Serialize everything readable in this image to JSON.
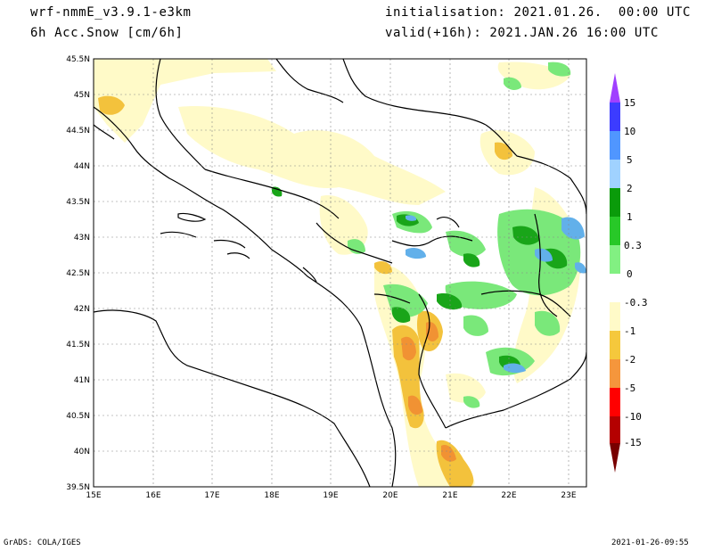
{
  "header": {
    "model": "wrf-nmmE_v3.9.1-e3km",
    "field": "6h Acc.Snow [cm/6h]",
    "init": "initialisation: 2021.01.26.  00:00 UTC",
    "valid": "valid(+16h): 2021.JAN.26 16:00 UTC"
  },
  "map": {
    "lat_labels": [
      "45.5N",
      "45N",
      "44.5N",
      "44N",
      "43.5N",
      "43N",
      "42.5N",
      "42N",
      "41.5N",
      "41N",
      "40.5N",
      "40N",
      "39.5N"
    ],
    "lon_labels": [
      "15E",
      "16E",
      "17E",
      "18E",
      "19E",
      "20E",
      "21E",
      "22E",
      "23E"
    ],
    "lat_range": [
      39.5,
      45.5
    ],
    "lon_range": [
      15.0,
      23.3
    ],
    "gridlines": true,
    "colors": {
      "neg_light": "#fffac8",
      "neg_mid": "#f3c23c",
      "neg_dark": "#f19233",
      "pos_light": "#7ae87a",
      "pos_mid": "#19a519",
      "pos_dark": "#0d7a0d",
      "pos_blue": "#62b0ea"
    }
  },
  "legend": {
    "labels": [
      "15",
      "10",
      "5",
      "2",
      "1",
      "0.3",
      "0",
      "-0.3",
      "-1",
      "-2",
      "-5",
      "-10",
      "-15"
    ],
    "colors": [
      "#a040ff",
      "#3c3cff",
      "#5096ff",
      "#a0d2ff",
      "#0a9b0a",
      "#28c828",
      "#82f082",
      "#ffffff",
      "#fffac8",
      "#f5c83c",
      "#f5963c",
      "#ff0000",
      "#b40000",
      "#780000"
    ]
  },
  "footer": {
    "left": "GrADS: COLA/IGES",
    "right": "2021-01-26-09:55"
  }
}
